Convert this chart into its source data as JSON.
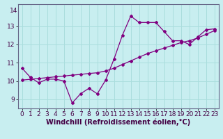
{
  "title": "",
  "xlabel": "Windchill (Refroidissement éolien,°C)",
  "ylabel": "",
  "bg_color": "#c8eef0",
  "grid_color": "#aadddd",
  "line_color": "#800080",
  "x_data": [
    0,
    1,
    2,
    3,
    4,
    5,
    6,
    7,
    8,
    9,
    10,
    11,
    12,
    13,
    14,
    15,
    16,
    17,
    18,
    19,
    20,
    21,
    22,
    23
  ],
  "y_data": [
    10.7,
    10.2,
    9.9,
    10.1,
    10.1,
    10.0,
    8.8,
    9.3,
    9.6,
    9.3,
    10.05,
    11.2,
    12.5,
    13.55,
    13.2,
    13.2,
    13.2,
    12.7,
    12.2,
    12.2,
    12.0,
    12.4,
    12.8,
    12.85
  ],
  "y_trend": [
    10.05,
    10.09,
    10.14,
    10.18,
    10.23,
    10.27,
    10.32,
    10.36,
    10.41,
    10.45,
    10.55,
    10.7,
    10.9,
    11.1,
    11.3,
    11.5,
    11.65,
    11.8,
    11.95,
    12.1,
    12.2,
    12.35,
    12.55,
    12.75
  ],
  "ylim": [
    8.5,
    14.2
  ],
  "xlim": [
    -0.5,
    23.5
  ],
  "yticks": [
    9,
    10,
    11,
    12,
    13
  ],
  "ytick_labels": [
    "9",
    "10",
    "11",
    "12",
    "13"
  ],
  "xticks": [
    0,
    1,
    2,
    3,
    4,
    5,
    6,
    7,
    8,
    9,
    10,
    11,
    12,
    13,
    14,
    15,
    16,
    17,
    18,
    19,
    20,
    21,
    22,
    23
  ],
  "tick_fontsize": 6.5,
  "label_fontsize": 7,
  "spine_color": "#666688",
  "tick_color": "#440044"
}
